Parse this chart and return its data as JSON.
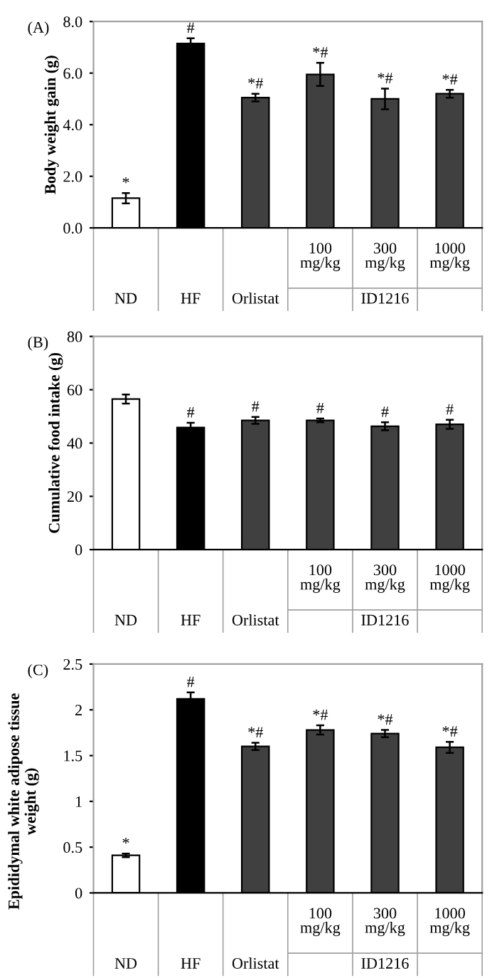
{
  "chart_data": [
    {
      "type": "bar",
      "title": "(A)",
      "ylabel": "Body weight gain (g)",
      "categories": [
        "ND",
        "HF",
        "Orlistat",
        "100\nmg/kg",
        "300\nmg/kg",
        "1000\nmg/kg"
      ],
      "values": [
        1.15,
        7.15,
        5.05,
        5.95,
        5.0,
        5.2
      ],
      "errors": [
        0.2,
        0.2,
        0.15,
        0.45,
        0.4,
        0.15
      ],
      "colors": [
        "#ffffff",
        "#000000",
        "#404040",
        "#404040",
        "#404040",
        "#404040"
      ],
      "ylim": [
        0,
        8
      ],
      "yticks": [
        {
          "value": 0,
          "label": "0.0"
        },
        {
          "value": 2,
          "label": "2.0"
        },
        {
          "value": 4,
          "label": "4.0"
        },
        {
          "value": 6,
          "label": "6.0"
        },
        {
          "value": 8,
          "label": "8.0"
        }
      ],
      "annotations": [
        "ID1216",
        {
          "text": "*",
          "x": "ND",
          "y": 1.35
        },
        {
          "text": "#",
          "x": "HF",
          "y": 7.35
        },
        {
          "text": "*#",
          "x": "Orlistat",
          "y": 5.2
        },
        {
          "text": "*#",
          "x": "100\nmg/kg",
          "y": 6.4
        },
        {
          "text": "*#",
          "x": "300\nmg/kg",
          "y": 5.4
        },
        {
          "text": "*#",
          "x": "1000\nmg/kg",
          "y": 5.35
        }
      ]
    },
    {
      "type": "bar",
      "title": "(B)",
      "ylabel": "Cumulative food intake (g)",
      "categories": [
        "ND",
        "HF",
        "Orlistat",
        "100\nmg/kg",
        "300\nmg/kg",
        "1000\nmg/kg"
      ],
      "values": [
        56.5,
        45.8,
        48.5,
        48.5,
        46.3,
        47.0
      ],
      "errors": [
        1.7,
        1.8,
        1.3,
        0.7,
        1.5,
        1.7
      ],
      "colors": [
        "#ffffff",
        "#000000",
        "#404040",
        "#404040",
        "#404040",
        "#404040"
      ],
      "ylim": [
        0,
        80
      ],
      "yticks": [
        0,
        20,
        40,
        60,
        80
      ],
      "annotations": [
        "ID1216",
        {
          "text": "#",
          "x": "HF",
          "y": 47.6
        },
        {
          "text": "#",
          "x": "Orlistat",
          "y": 49.8
        },
        {
          "text": "#",
          "x": "100\nmg/kg",
          "y": 49.2
        },
        {
          "text": "#",
          "x": "300\nmg/kg",
          "y": 47.8
        },
        {
          "text": "#",
          "x": "1000\nmg/kg",
          "y": 48.7
        }
      ]
    },
    {
      "type": "bar",
      "title": "(C)",
      "ylabel": "Epididymal white adipose tissue\nweight (g)",
      "categories": [
        "ND",
        "HF",
        "Orlistat",
        "100\nmg/kg",
        "300\nmg/kg",
        "1000\nmg/kg"
      ],
      "values": [
        0.41,
        2.12,
        1.6,
        1.78,
        1.74,
        1.59
      ],
      "errors": [
        0.02,
        0.07,
        0.04,
        0.05,
        0.04,
        0.06
      ],
      "colors": [
        "#ffffff",
        "#000000",
        "#404040",
        "#404040",
        "#404040",
        "#404040"
      ],
      "ylim": [
        0,
        2.5
      ],
      "yticks": [
        0,
        0.5,
        1,
        1.5,
        2,
        2.5
      ],
      "annotations": [
        "ID1216",
        {
          "text": "*",
          "x": "ND",
          "y": 0.43
        },
        {
          "text": "#",
          "x": "HF",
          "y": 2.19
        },
        {
          "text": "*#",
          "x": "Orlistat",
          "y": 1.64
        },
        {
          "text": "*#",
          "x": "100\nmg/kg",
          "y": 1.83
        },
        {
          "text": "*#",
          "x": "300\nmg/kg",
          "y": 1.78
        },
        {
          "text": "*#",
          "x": "1000\nmg/kg",
          "y": 1.65
        }
      ]
    }
  ]
}
